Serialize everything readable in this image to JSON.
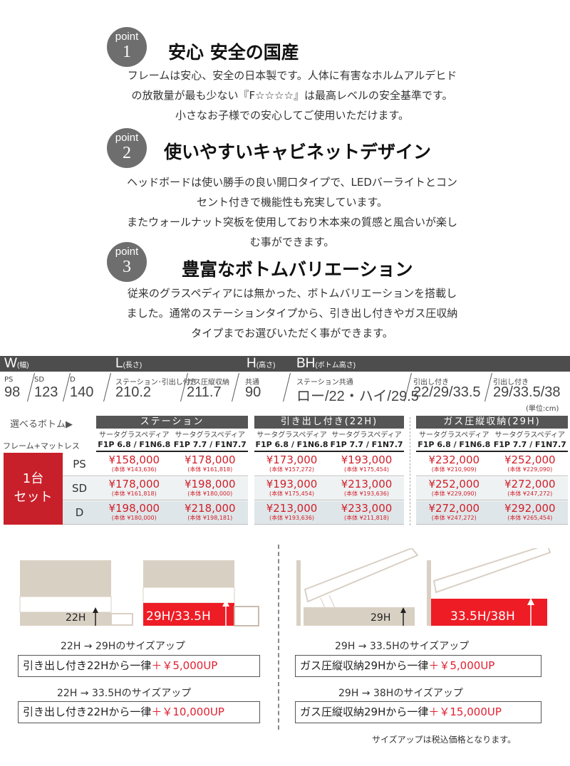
{
  "points": [
    {
      "label": "point",
      "num": "1",
      "title": "安心 安全の国産",
      "lines": [
        "フレームは安心、安全の日本製です。人体に有害なホルムアルデヒド",
        "の放散量が最も少ない『F☆☆☆☆』は最高レベルの安全基準です。",
        "小さなお子様での安心してご使用いただけます。"
      ]
    },
    {
      "label": "point",
      "num": "2",
      "title": "使いやすいキャビネットデザイン",
      "lines": [
        "ヘッドボードは使い勝手の良い開口タイプで、LEDバーライトとコン",
        "セント付きで機能性も充実しています。",
        "またウォールナット突板を使用しており木本来の質感と風合いが楽し",
        "む事ができます。"
      ]
    },
    {
      "label": "point",
      "num": "3",
      "title": "豊富なボトムバリエーション",
      "lines": [
        "従来のグラスペディアには無かった、ボトムバリエーションを搭載し",
        "ました。通常のステーションタイプから、引き出し付きやガス圧収納",
        "タイプまでお選びいただく事ができます。"
      ]
    }
  ],
  "specs": {
    "w": {
      "head": "W",
      "sub": "(幅)",
      "items": [
        {
          "label": "PS",
          "value": "98"
        },
        {
          "label": "SD",
          "value": "123"
        },
        {
          "label": "D",
          "value": "140"
        }
      ]
    },
    "l": {
      "head": "L",
      "sub": "(長さ)",
      "items": [
        {
          "label": "ステーション･引出し付き",
          "value": "210.2"
        },
        {
          "label": "ガス圧縦収納",
          "value": "211.7"
        }
      ]
    },
    "h": {
      "head": "H",
      "sub": "(高さ)",
      "items": [
        {
          "label": "共通",
          "value": "90"
        }
      ]
    },
    "bh": {
      "head": "BH",
      "sub": "(ボトム高さ)",
      "items": [
        {
          "label": "ステーション共通",
          "value": "ロー/22・ハイ/29.5"
        },
        {
          "label": "引出し付き",
          "value": "22/29/33.5"
        },
        {
          "label": "引出し付き",
          "value": "29/33.5/38"
        }
      ]
    },
    "unit": "(単位:cm)"
  },
  "table": {
    "select_label": "選べるボトム▶",
    "frame_label": "フレーム+マットレス",
    "set_label": [
      "1台",
      "セット"
    ],
    "groups": [
      {
        "title": "ステーション",
        "models": [
          {
            "name": "サータグラスペディア",
            "code": "F1P 6.8 / F1N6.8"
          },
          {
            "name": "サータグラスペディア",
            "code": "F1P 7.7 / F1N7.7"
          }
        ]
      },
      {
        "title": "引き出し付き(22H)",
        "models": [
          {
            "name": "サータグラスペディア",
            "code": "F1P 6.8 / F1N6.8"
          },
          {
            "name": "サータグラスペディア",
            "code": "F1P 7.7 / F1N7.7"
          }
        ]
      },
      {
        "title": "ガス圧縦収納(29H)",
        "models": [
          {
            "name": "サータグラスペディア",
            "code": "F1P 6.8 / F1N6.8"
          },
          {
            "name": "サータグラスペディア",
            "code": "F1P 7.7 / F1N7.7"
          }
        ]
      }
    ],
    "rows": [
      {
        "size": "PS",
        "prices": [
          [
            "¥158,000",
            "(本体 ¥143,636)"
          ],
          [
            "¥178,000",
            "(本体 ¥161,818)"
          ],
          [
            "¥173,000",
            "(本体 ¥157,272)"
          ],
          [
            "¥193,000",
            "(本体 ¥175,454)"
          ],
          [
            "¥232,000",
            "(本体 ¥210,909)"
          ],
          [
            "¥252,000",
            "(本体 ¥229,090)"
          ]
        ]
      },
      {
        "size": "SD",
        "prices": [
          [
            "¥178,000",
            "(本体 ¥161,818)"
          ],
          [
            "¥198,000",
            "(本体 ¥180,000)"
          ],
          [
            "¥193,000",
            "(本体 ¥175,454)"
          ],
          [
            "¥213,000",
            "(本体 ¥193,636)"
          ],
          [
            "¥252,000",
            "(本体 ¥229,090)"
          ],
          [
            "¥272,000",
            "(本体 ¥247,272)"
          ]
        ]
      },
      {
        "size": "D",
        "prices": [
          [
            "¥198,000",
            "(本体 ¥180,000)"
          ],
          [
            "¥218,000",
            "(本体 ¥198,181)"
          ],
          [
            "¥213,000",
            "(本体 ¥193,636)"
          ],
          [
            "¥233,000",
            "(本体 ¥211,818)"
          ],
          [
            "¥272,000",
            "(本体 ¥247,272)"
          ],
          [
            "¥292,000",
            "(本体 ¥265,454)"
          ]
        ]
      }
    ]
  },
  "sizeup": {
    "illus": [
      "22H",
      "29H/33.5H",
      "29H",
      "33.5H/38H"
    ],
    "items": [
      {
        "caption": "22H → 29Hのサイズアップ",
        "text": "引き出し付き22Hから一律",
        "price": "＋￥5,000UP"
      },
      {
        "caption": "29H → 33.5Hのサイズアップ",
        "text": "ガス圧縦収納29Hから一律",
        "price": "＋￥5,000UP"
      },
      {
        "caption": "22H → 33.5Hのサイズアップ",
        "text": "引き出し付き22Hから一律",
        "price": "＋￥10,000UP"
      },
      {
        "caption": "29H → 38Hのサイズアップ",
        "text": "ガス圧縦収納29Hから一律",
        "price": "＋￥15,000UP"
      }
    ],
    "note": "サイズアップは税込価格となります。"
  },
  "colors": {
    "accent": "#d0202a",
    "red": "#ee1c25",
    "header": "#4d4d4d",
    "beige": "#d9d0c4"
  }
}
